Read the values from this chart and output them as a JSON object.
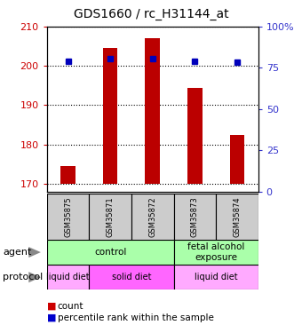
{
  "title": "GDS1660 / rc_H31144_at",
  "samples": [
    "GSM35875",
    "GSM35871",
    "GSM35872",
    "GSM35873",
    "GSM35874"
  ],
  "bar_values": [
    174.5,
    204.5,
    207.0,
    194.5,
    182.5
  ],
  "percentile_y": [
    201.2,
    201.8,
    201.8,
    201.2,
    201.0
  ],
  "ylim_left": [
    168,
    210
  ],
  "ylim_right": [
    0,
    100
  ],
  "yticks_left": [
    170,
    180,
    190,
    200,
    210
  ],
  "yticks_right": [
    0,
    25,
    50,
    75,
    100
  ],
  "ytick_labels_right": [
    "0",
    "25",
    "50",
    "75",
    "100%"
  ],
  "bar_color": "#bb0000",
  "dot_color": "#0000bb",
  "bar_bottom": 170,
  "grid_color": "#000000",
  "sample_box_color": "#cccccc",
  "left_label_color": "#cc0000",
  "right_label_color": "#3333cc",
  "agent_green": "#aaffaa",
  "proto_light": "#ffaaff",
  "proto_dark": "#ff66ff",
  "legend_count_color": "#cc0000",
  "legend_dot_color": "#0000cc"
}
